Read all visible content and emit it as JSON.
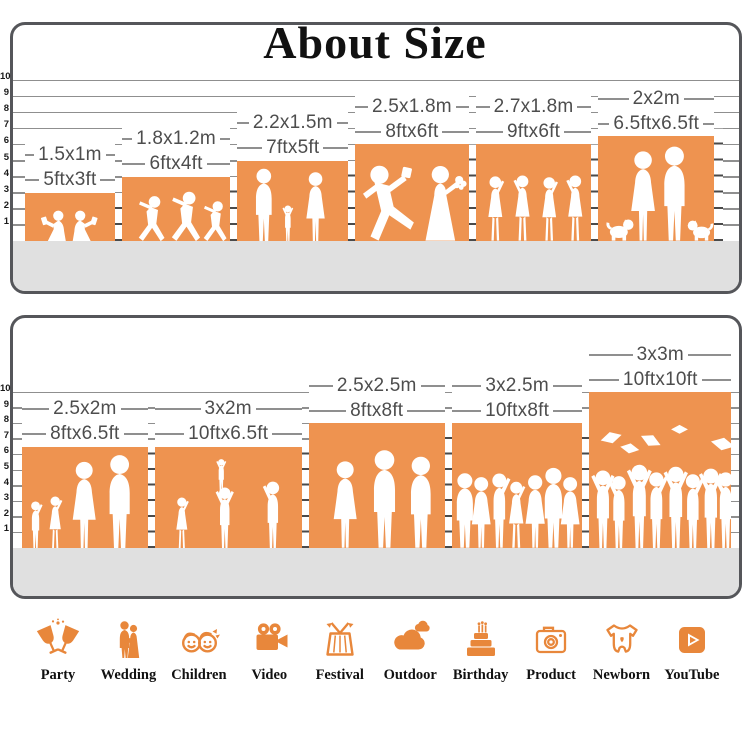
{
  "title": "About Size",
  "colors": {
    "accent": "#EE9350",
    "icon_orange": "#E8873B",
    "floor": "#E0E0E0",
    "line": "#8F8F8F",
    "label_text": "#4D4D4D",
    "panel_border": "#55565A"
  },
  "panels": [
    {
      "name": "panel-top",
      "ruler": [
        "10",
        "9",
        "8",
        "7",
        "6",
        "5",
        "4",
        "3",
        "2",
        "1"
      ],
      "blocks": [
        {
          "metric": "1.5x1m",
          "imperial": "5ftx3ft",
          "w_ft": 5,
          "h_ft": 3,
          "scene": "kids-reading"
        },
        {
          "metric": "1.8x1.2m",
          "imperial": "6ftx4ft",
          "w_ft": 6,
          "h_ft": 4,
          "scene": "kids-running"
        },
        {
          "metric": "2.2x1.5m",
          "imperial": "7ftx5ft",
          "w_ft": 7,
          "h_ft": 5,
          "scene": "family-walk"
        },
        {
          "metric": "2.5x1.8m",
          "imperial": "8ftx6ft",
          "w_ft": 8,
          "h_ft": 6,
          "scene": "wedding-couple"
        },
        {
          "metric": "2.7x1.8m",
          "imperial": "9ftx6ft",
          "w_ft": 9,
          "h_ft": 6,
          "scene": "dancing-girls"
        },
        {
          "metric": "2x2m",
          "imperial": "6.5ftx6.5ft",
          "w_ft": 6.5,
          "h_ft": 6.5,
          "scene": "couple-dogs"
        }
      ]
    },
    {
      "name": "panel-bottom",
      "ruler": [
        "10",
        "9",
        "8",
        "7",
        "6",
        "5",
        "4",
        "3",
        "2",
        "1"
      ],
      "blocks": [
        {
          "metric": "2.5x2m",
          "imperial": "8ftx6.5ft",
          "w_ft": 8,
          "h_ft": 6.5,
          "scene": "family-four"
        },
        {
          "metric": "3x2m",
          "imperial": "10ftx6.5ft",
          "w_ft": 10,
          "h_ft": 6.5,
          "scene": "family-lift"
        },
        {
          "metric": "2.5x2.5m",
          "imperial": "8ftx8ft",
          "w_ft": 8,
          "h_ft": 8,
          "scene": "three-adults"
        },
        {
          "metric": "3x2.5m",
          "imperial": "10ftx8ft",
          "w_ft": 10,
          "h_ft": 8,
          "scene": "group-friends"
        },
        {
          "metric": "3x3m",
          "imperial": "10ftx10ft",
          "w_ft": 10,
          "h_ft": 10,
          "scene": "graduation"
        }
      ]
    }
  ],
  "categories": [
    {
      "label": "Party",
      "icon": "party-icon"
    },
    {
      "label": "Wedding",
      "icon": "wedding-icon"
    },
    {
      "label": "Children",
      "icon": "children-icon"
    },
    {
      "label": "Video",
      "icon": "video-icon"
    },
    {
      "label": "Festival",
      "icon": "festival-icon"
    },
    {
      "label": "Outdoor",
      "icon": "outdoor-icon"
    },
    {
      "label": "Birthday",
      "icon": "birthday-icon"
    },
    {
      "label": "Product",
      "icon": "product-icon"
    },
    {
      "label": "Newborn",
      "icon": "newborn-icon"
    },
    {
      "label": "YouTube",
      "icon": "youtube-icon"
    }
  ]
}
